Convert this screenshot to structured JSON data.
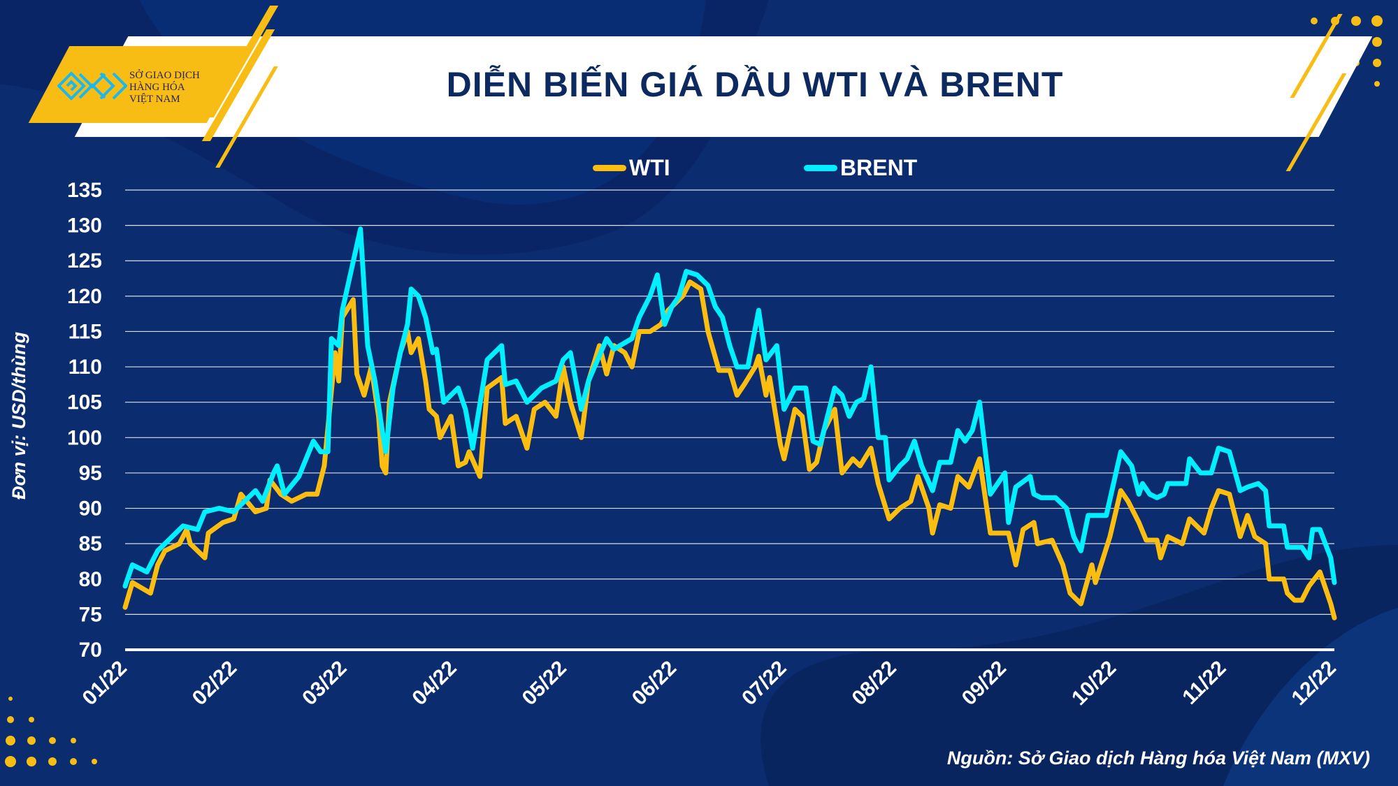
{
  "logo": {
    "text": "SỞ GIAO DỊCH HÀNG HÓA VIỆT NAM",
    "lines": [
      "SỞ GIAO DỊCH",
      "HÀNG HÓA",
      "VIỆT NAM"
    ]
  },
  "header": {
    "title": "DIỄN BIẾN GIÁ DẦU WTI VÀ BRENT"
  },
  "footer": {
    "source": "Nguồn: Sở Giao dịch Hàng hóa Việt Nam (MXV)"
  },
  "colors": {
    "wti": "#fbbd0f",
    "brent": "#00f0ff",
    "background": "#0b2c6e",
    "title": "#0c2a5f"
  },
  "chart_data": {
    "type": "line",
    "title": "DIỄN BIẾN GIÁ DẦU WTI VÀ BRENT",
    "xlabel": "",
    "ylabel": "Đơn vị: USD/thùng",
    "x_unit": "days since 01/2022",
    "xlim": [
      0,
      334
    ],
    "ylim": [
      70,
      135
    ],
    "yticks": [
      70,
      75,
      80,
      85,
      90,
      95,
      100,
      105,
      110,
      115,
      120,
      125,
      130,
      135
    ],
    "xtick_labels": [
      "01/22",
      "02/22",
      "03/22",
      "04/22",
      "05/22",
      "06/22",
      "07/22",
      "08/22",
      "09/22",
      "10/22",
      "11/22",
      "12/22"
    ],
    "grid": true,
    "legend_position": "top-center",
    "series": [
      {
        "name": "WTI",
        "color": "#fbbd0f",
        "x": [
          0,
          2,
          7,
          9,
          11,
          15,
          17,
          18,
          22,
          23,
          27,
          30,
          32,
          36,
          39,
          40,
          43,
          46,
          50,
          53,
          55,
          58,
          59,
          60,
          63,
          64,
          66,
          68,
          70,
          71,
          72,
          73,
          76,
          78,
          79,
          81,
          83,
          84,
          86,
          87,
          90,
          92,
          94,
          95,
          98,
          100,
          104,
          105,
          108,
          111,
          113,
          116,
          119,
          121,
          123,
          126,
          128,
          131,
          133,
          135,
          138,
          140,
          142,
          145,
          148,
          150,
          154,
          156,
          159,
          161,
          164,
          167,
          169,
          171,
          174,
          175,
          177,
          178,
          181,
          182,
          185,
          187,
          189,
          191,
          193,
          196,
          198,
          201,
          203,
          206,
          208,
          211,
          214,
          217,
          219,
          222,
          223,
          225,
          228,
          230,
          233,
          236,
          239,
          244,
          246,
          248,
          251,
          252,
          256,
          259,
          261,
          264,
          267,
          268,
          272,
          275,
          277,
          280,
          282,
          285,
          286,
          288,
          292,
          294,
          298,
          300,
          302,
          305,
          308,
          310,
          312,
          315,
          316,
          320,
          321,
          323,
          325,
          327,
          330,
          333,
          334
        ],
        "y": [
          76,
          79.5,
          78,
          82,
          84,
          85,
          87,
          85,
          83,
          86.5,
          88,
          88.5,
          92,
          89.5,
          90,
          94,
          92,
          91,
          92,
          92,
          96,
          112,
          108,
          117,
          119.5,
          109,
          106,
          110,
          103,
          96,
          95,
          105,
          112,
          115,
          112,
          114,
          108,
          104,
          103,
          100,
          103,
          96,
          96.5,
          98,
          94.5,
          107,
          108.5,
          102,
          103,
          98.5,
          104,
          105,
          103,
          110,
          105,
          100,
          108,
          113,
          109,
          113,
          112,
          110,
          115,
          115,
          116,
          118,
          120,
          122,
          121,
          115,
          109.5,
          109.5,
          106,
          107.5,
          110,
          111.5,
          106,
          108.5,
          99,
          97,
          104,
          103,
          95.5,
          96.5,
          101,
          104,
          95,
          97,
          96,
          98.5,
          93.5,
          88.5,
          90,
          91,
          94.5,
          90,
          86.5,
          90.5,
          90,
          94.5,
          93,
          97,
          86.5,
          86.5,
          82,
          87,
          88,
          85,
          85.5,
          82,
          78,
          76.5,
          82,
          79.5,
          86,
          92.5,
          91,
          88,
          85.5,
          85.5,
          83,
          86,
          85,
          88.5,
          86.5,
          90,
          92.5,
          92,
          86,
          89,
          86,
          85,
          80,
          80,
          78,
          77,
          77,
          79,
          81,
          76.5,
          74.5
        ]
      },
      {
        "name": "BRENT",
        "color": "#00f0ff",
        "x": [
          0,
          2,
          6,
          9,
          12,
          16,
          20,
          22,
          26,
          30,
          33,
          36,
          38,
          41,
          42,
          44,
          48,
          52,
          54,
          56,
          57,
          59,
          60,
          65,
          67,
          69,
          71,
          72,
          74,
          76,
          78,
          79,
          81,
          83,
          85,
          86,
          88,
          92,
          94,
          96,
          100,
          104,
          105,
          108,
          111,
          113,
          115,
          119,
          121,
          123,
          126,
          128,
          133,
          135,
          140,
          142,
          145,
          147,
          149,
          151,
          153,
          155,
          158,
          161,
          163,
          165,
          167,
          169,
          172,
          175,
          177,
          180,
          182,
          185,
          188,
          190,
          192,
          196,
          198,
          200,
          202,
          204,
          206,
          208,
          210,
          211,
          214,
          216,
          218,
          220,
          223,
          225,
          228,
          230,
          232,
          234,
          236,
          239,
          243,
          244,
          246,
          250,
          251,
          253,
          257,
          260,
          262,
          264,
          266,
          271,
          275,
          278,
          280,
          281,
          283,
          285,
          287,
          288,
          293,
          294,
          297,
          300,
          302,
          305,
          308,
          310,
          313,
          315,
          316,
          320,
          321,
          325,
          327,
          328,
          330,
          333,
          334
        ],
        "y": [
          79,
          82,
          81,
          84,
          85.5,
          87.5,
          87,
          89.5,
          90,
          89.5,
          91,
          92.5,
          91,
          95,
          96,
          92,
          94.5,
          99.5,
          98,
          98,
          114,
          113,
          118,
          129.5,
          113,
          108,
          101,
          98,
          107,
          112,
          116,
          121,
          120,
          117,
          112,
          112.5,
          105,
          107,
          104,
          98.5,
          111,
          113,
          107.5,
          108,
          105,
          106,
          107,
          108,
          111,
          112,
          104,
          108,
          114,
          112.5,
          114,
          117,
          120,
          123,
          116,
          118.5,
          120,
          123.5,
          123,
          121.5,
          118.5,
          117,
          113,
          110,
          110,
          118,
          111,
          113,
          104,
          107,
          107,
          99.5,
          99,
          107,
          106,
          103,
          105,
          105.5,
          110,
          100,
          100,
          94,
          96,
          97,
          99.5,
          96,
          92.5,
          96.5,
          96.5,
          101,
          99.5,
          101,
          105,
          92,
          95,
          88,
          93,
          94.5,
          92,
          91.5,
          91.5,
          90,
          86,
          84,
          89,
          89,
          98,
          96,
          92,
          93.5,
          92,
          91.5,
          92,
          93.5,
          93.5,
          97,
          95,
          95,
          98.5,
          98,
          92.5,
          93,
          93.5,
          92.5,
          87.5,
          87.5,
          84.5,
          84.5,
          83,
          87,
          87,
          83,
          79.5
        ]
      }
    ]
  }
}
